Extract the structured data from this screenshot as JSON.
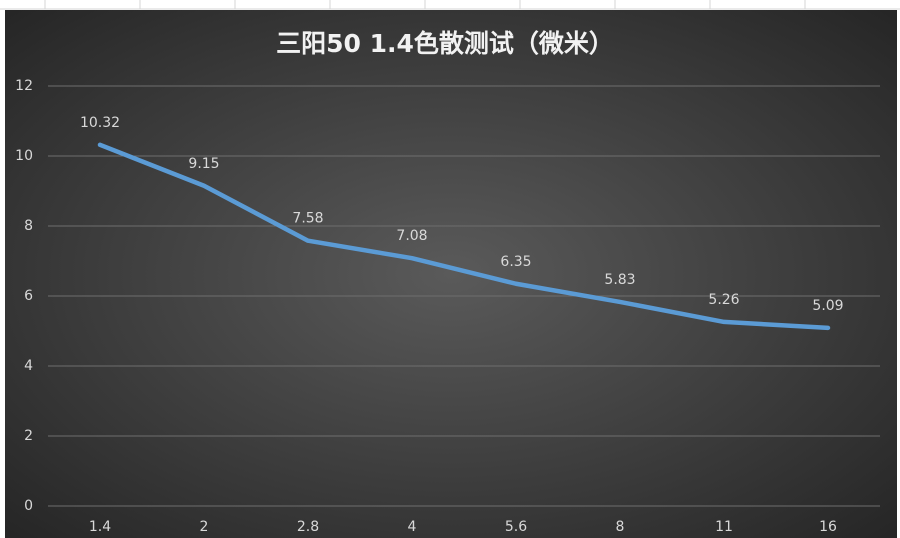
{
  "chart_data": {
    "type": "line",
    "title": "三阳50 1.4色散测试（微米）",
    "categories": [
      "1.4",
      "2",
      "2.8",
      "4",
      "5.6",
      "8",
      "11",
      "16"
    ],
    "values": [
      10.32,
      9.15,
      7.58,
      7.08,
      6.35,
      5.83,
      5.26,
      5.09
    ],
    "color": "#5b9bd5",
    "ylim": [
      0,
      12
    ],
    "yticks": [
      0,
      2,
      4,
      6,
      8,
      10,
      12
    ],
    "grid": true
  }
}
